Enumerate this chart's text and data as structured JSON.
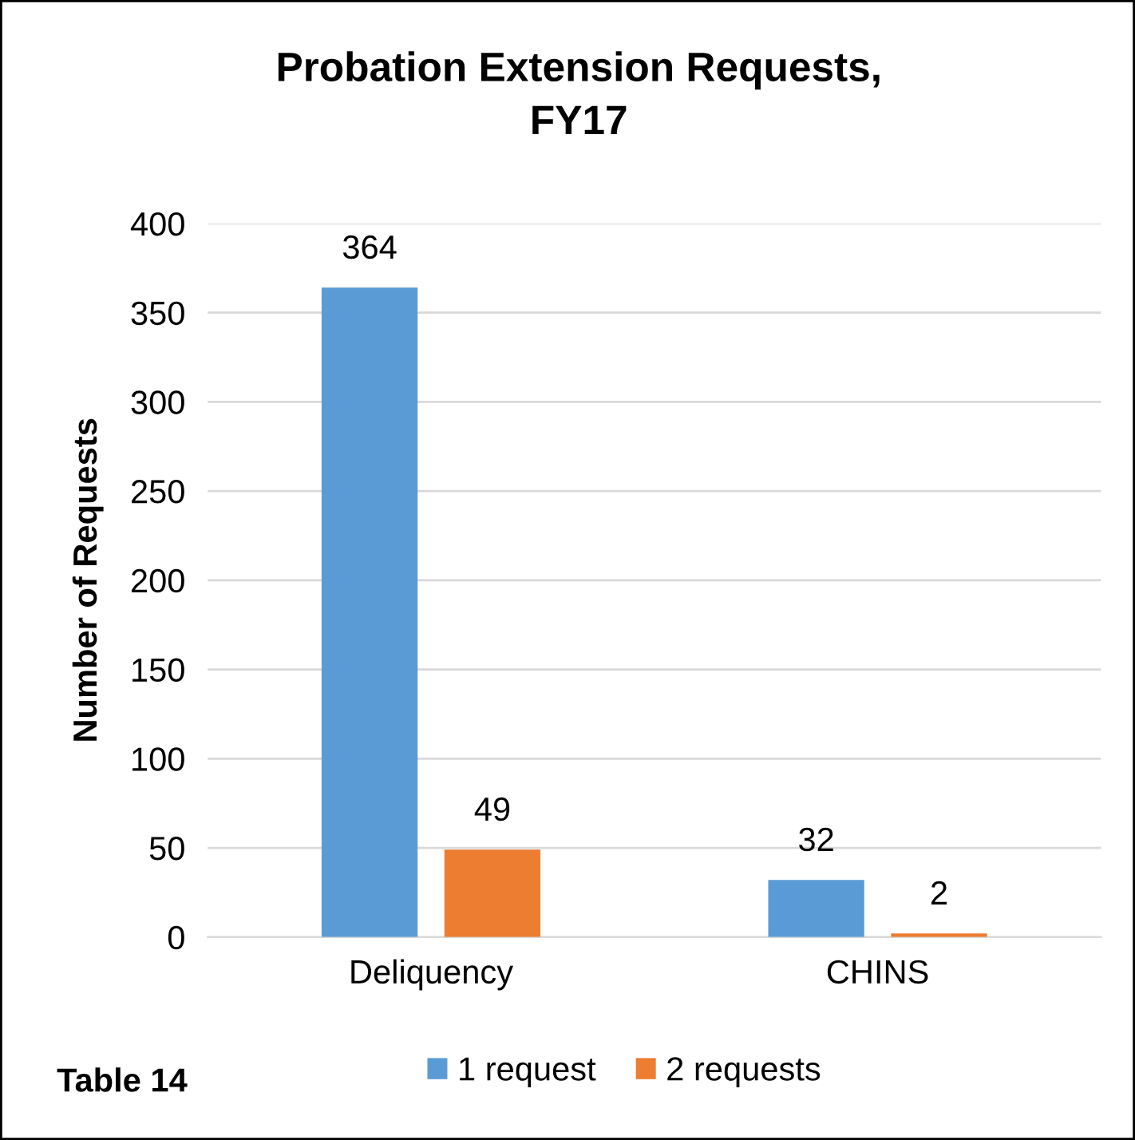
{
  "chart_data": {
    "type": "bar",
    "title": "Probation Extension Requests,\nFY17",
    "ylabel": "Number of Requests",
    "categories": [
      "Deliquency",
      "CHINS"
    ],
    "series": [
      {
        "name": "1 request",
        "color": "#5b9bd5",
        "values": [
          364,
          32
        ]
      },
      {
        "name": "2 requests",
        "color": "#ed7d31",
        "values": [
          49,
          2
        ]
      }
    ],
    "ylim": [
      0,
      400
    ],
    "yticks": [
      0,
      50,
      100,
      150,
      200,
      250,
      300,
      350,
      400
    ],
    "grid": "y",
    "legend": "bottom",
    "data_labels": true,
    "annotations": [
      "Table 14"
    ]
  }
}
